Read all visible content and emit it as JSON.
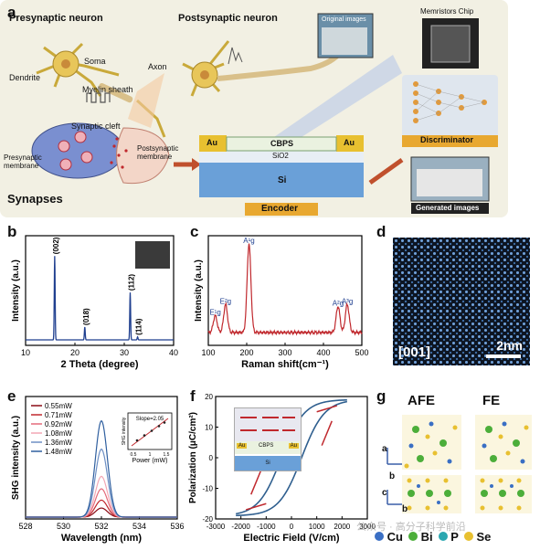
{
  "panels": {
    "a": {
      "label": "a",
      "presynaptic_neuron": "Presynaptic neuron",
      "postsynaptic_neuron": "Postsynaptic neuron",
      "soma": "Soma",
      "axon": "Axon",
      "dendrite": "Dendrite",
      "myelin_sheath": "Myelin sheath",
      "synaptic_cleft": "Synaptic cleft",
      "presynaptic_membrane": "Presynaptic\nmembrane",
      "postsynaptic_membrane": "Postsynaptic\nmembrane",
      "synapses": "Synapses",
      "original_images": "Original images",
      "memristors_chip": "Memristors Chip",
      "discriminator": "Discriminator",
      "generated_images": "Generated images",
      "encoder": "Encoder",
      "au_left": "Au",
      "au_right": "Au",
      "cbps": "CBPS",
      "sio2": "SiO2",
      "si": "Si"
    },
    "b": {
      "label": "b"
    },
    "c": {
      "label": "c"
    },
    "d": {
      "label": "d",
      "zone_axis": "[001]",
      "scale_bar": "2nm"
    },
    "e": {
      "label": "e"
    },
    "f": {
      "label": "f",
      "inset_au_left": "Au",
      "inset_au_right": "Au",
      "inset_cbps": "CBPS",
      "inset_si": "Si"
    },
    "g": {
      "label": "g",
      "afe": "AFE",
      "fe": "FE",
      "axis_a": "a",
      "axis_b": "b",
      "axis_c": "c",
      "axis_b2": "b"
    }
  },
  "legend_g": [
    {
      "name": "Cu",
      "color": "#3a6fc4"
    },
    {
      "name": "Bi",
      "color": "#4cae3a"
    },
    {
      "name": "P",
      "color": "#2aa7b0"
    },
    {
      "name": "Se",
      "color": "#e8c030"
    }
  ],
  "watermark": "公众号 · 高分子科学前沿",
  "chart_data": [
    {
      "id": "b",
      "type": "line",
      "xlabel": "2 Theta (degree)",
      "ylabel": "Intensity (a.u.)",
      "xlim": [
        10,
        40
      ],
      "xticks": [
        10,
        20,
        30,
        40
      ],
      "color": "#1f3f8f",
      "peaks": [
        {
          "x": 15.9,
          "h": 0.85,
          "label": "(002)"
        },
        {
          "x": 22.0,
          "h": 0.13,
          "label": "(018)"
        },
        {
          "x": 31.2,
          "h": 0.48,
          "label": "(112)"
        },
        {
          "x": 32.7,
          "h": 0.03,
          "label": "(114)"
        }
      ]
    },
    {
      "id": "c",
      "type": "line",
      "xlabel": "Raman shift(cm⁻¹)",
      "ylabel": "Intensity (a.u.)",
      "xlim": [
        100,
        500
      ],
      "xticks": [
        100,
        200,
        300,
        400,
        500
      ],
      "color": "#c0282d",
      "peaks": [
        {
          "x": 118,
          "h": 0.18,
          "label": "E¹g"
        },
        {
          "x": 145,
          "h": 0.3,
          "label": "E²g"
        },
        {
          "x": 206,
          "h": 0.95,
          "label": "A¹g"
        },
        {
          "x": 438,
          "h": 0.28,
          "label": "A²g"
        },
        {
          "x": 462,
          "h": 0.3,
          "label": "A³g"
        }
      ]
    },
    {
      "id": "e",
      "type": "line",
      "xlabel": "Wavelength (nm)",
      "ylabel": "SHG intensity (a.u.)",
      "xlim": [
        528,
        536
      ],
      "xticks": [
        528,
        530,
        532,
        534,
        536
      ],
      "series": [
        {
          "name": "0.55mW",
          "peak": 0.08,
          "color": "#8b0a14"
        },
        {
          "name": "0.71mW",
          "peak": 0.15,
          "color": "#c0282d"
        },
        {
          "name": "0.92mW",
          "peak": 0.25,
          "color": "#e46a7a"
        },
        {
          "name": "1.08mW",
          "peak": 0.36,
          "color": "#f2a7b4"
        },
        {
          "name": "1.36mW",
          "peak": 0.6,
          "color": "#6d8fc4"
        },
        {
          "name": "1.48mW",
          "peak": 0.85,
          "color": "#2f5f9f"
        }
      ],
      "inset": {
        "label": "Slope=2.05",
        "xlabel": "Power (mW)",
        "ylabel": "SHG intensity",
        "xticks": [
          0.5,
          1,
          1.5
        ]
      }
    },
    {
      "id": "f",
      "type": "line",
      "xlabel": "Electric Field (V/cm)",
      "ylabel": "Polarization (μC/cm²)",
      "xlim": [
        -3000,
        3000
      ],
      "ylim": [
        -20,
        20
      ],
      "xticks": [
        -3000,
        -2000,
        -1000,
        0,
        1000,
        2000,
        3000
      ],
      "yticks": [
        -20,
        -10,
        0,
        10,
        20
      ],
      "color": "#2f5f8f"
    }
  ]
}
